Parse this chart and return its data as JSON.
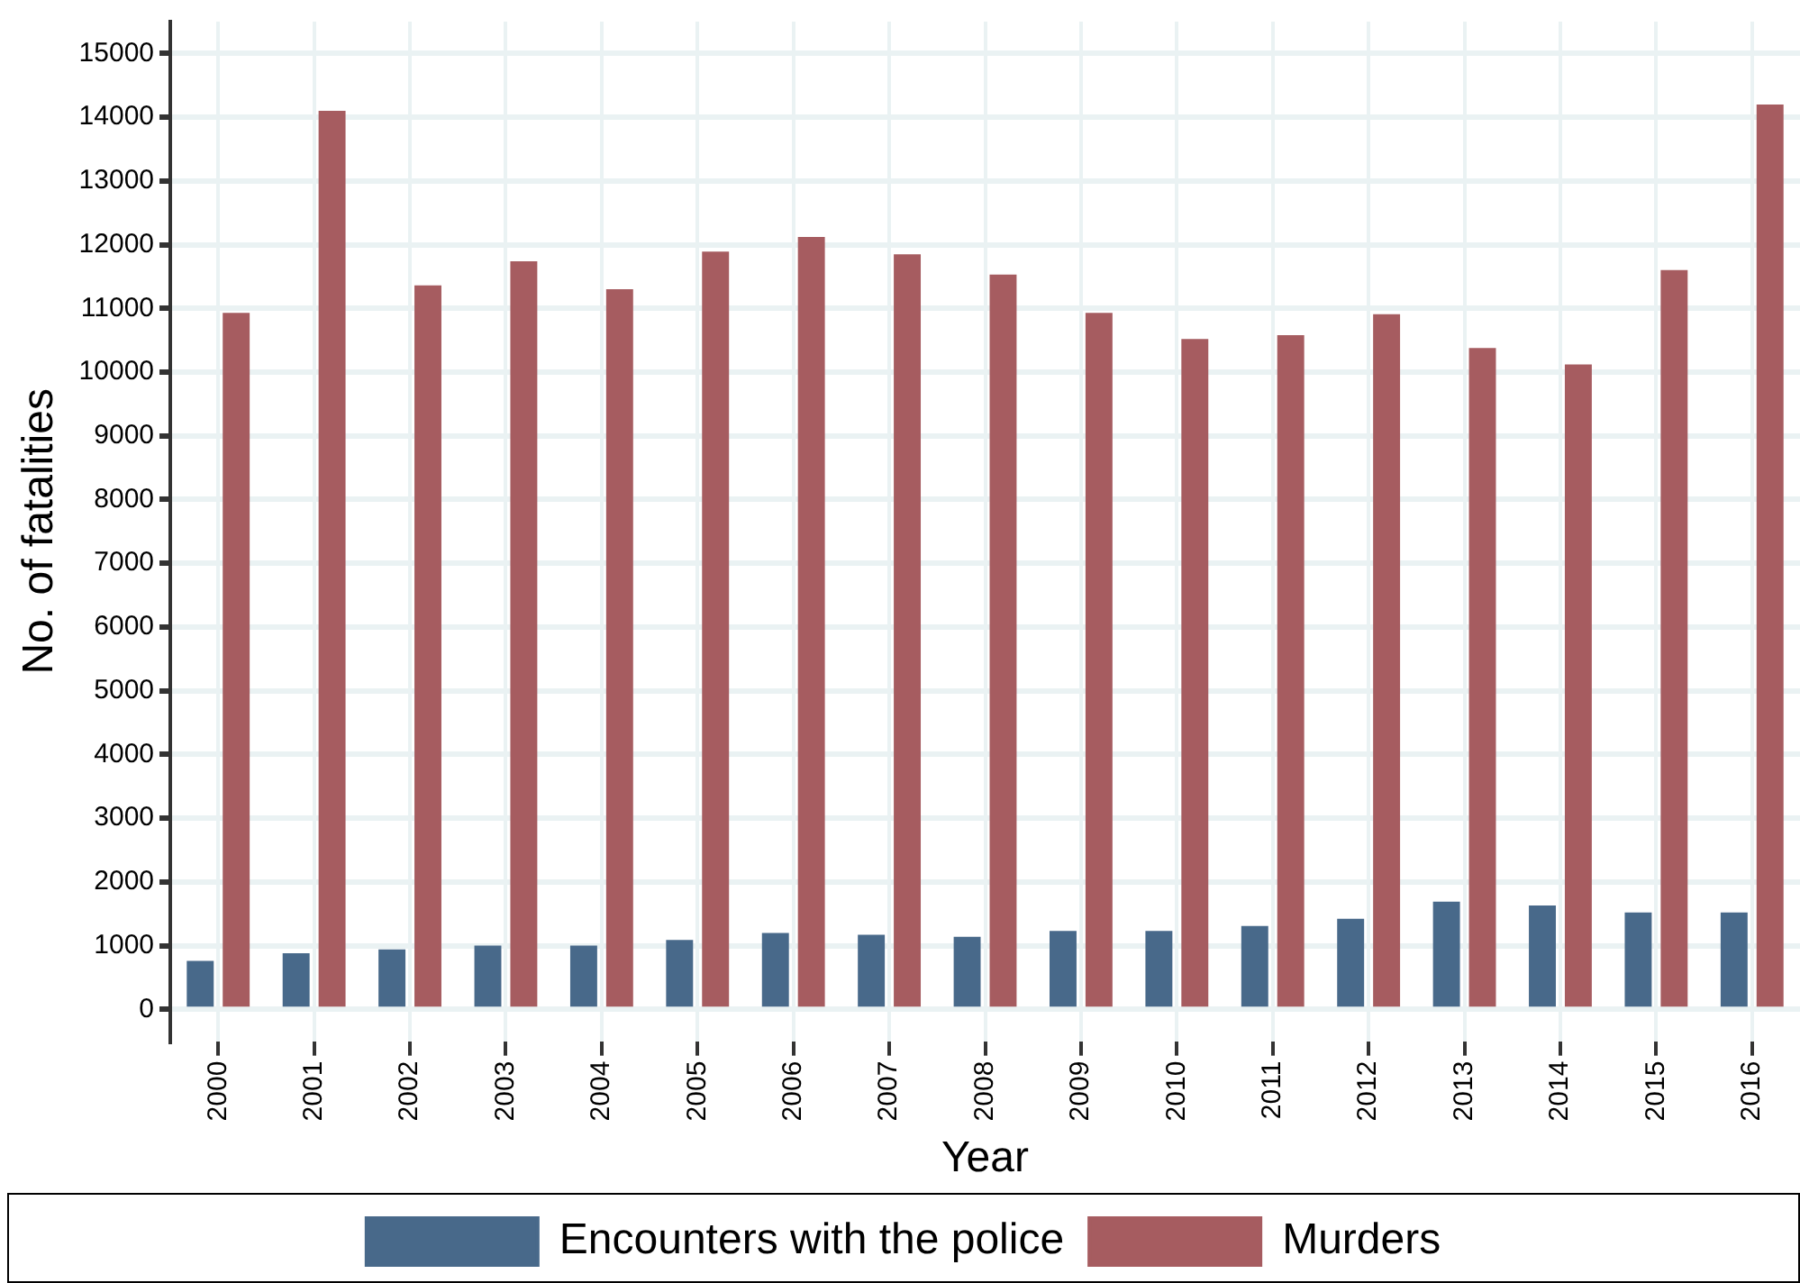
{
  "chart_data": {
    "type": "bar",
    "xlabel": "Year",
    "ylabel": "No. of fatalities",
    "categories": [
      "2000",
      "2001",
      "2002",
      "2003",
      "2004",
      "2005",
      "2006",
      "2007",
      "2008",
      "2009",
      "2010",
      "2011",
      "2012",
      "2013",
      "2014",
      "2015",
      "2016"
    ],
    "series": [
      {
        "name": "Encounters with the police",
        "color": "#48698a",
        "values": [
          760,
          880,
          940,
          1000,
          1000,
          1090,
          1200,
          1170,
          1140,
          1230,
          1230,
          1310,
          1420,
          1690,
          1630,
          1520,
          1520
        ]
      },
      {
        "name": "Murders",
        "color": "#a65c60",
        "values": [
          10930,
          14100,
          11360,
          11740,
          11300,
          11890,
          12120,
          11850,
          11530,
          10930,
          10520,
          10580,
          10910,
          10380,
          10120,
          11600,
          14200
        ]
      }
    ],
    "ylim": [
      -500,
      15500
    ],
    "yticks": [
      0,
      1000,
      2000,
      3000,
      4000,
      5000,
      6000,
      7000,
      8000,
      9000,
      10000,
      11000,
      12000,
      13000,
      14000,
      15000
    ],
    "grid": true,
    "legend": "bottom"
  }
}
